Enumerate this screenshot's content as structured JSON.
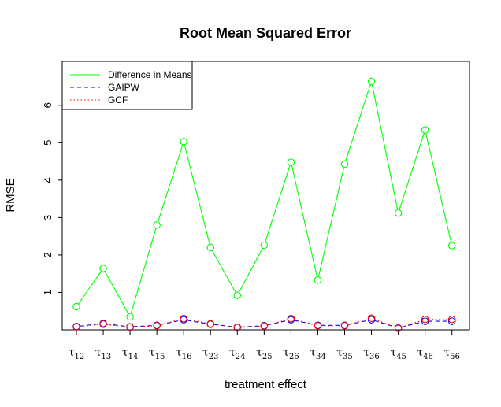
{
  "chart_data": {
    "type": "line",
    "title": "Root Mean Squared Error",
    "xlabel": "treatment effect",
    "ylabel": "RMSE",
    "categories": [
      {
        "base": "τ",
        "sub": "12"
      },
      {
        "base": "τ",
        "sub": "13"
      },
      {
        "base": "τ",
        "sub": "14"
      },
      {
        "base": "τ",
        "sub": "15"
      },
      {
        "base": "τ",
        "sub": "16"
      },
      {
        "base": "τ",
        "sub": "23"
      },
      {
        "base": "τ",
        "sub": "24"
      },
      {
        "base": "τ",
        "sub": "25"
      },
      {
        "base": "τ",
        "sub": "26"
      },
      {
        "base": "τ",
        "sub": "34"
      },
      {
        "base": "τ",
        "sub": "35"
      },
      {
        "base": "τ",
        "sub": "36"
      },
      {
        "base": "τ",
        "sub": "45"
      },
      {
        "base": "τ",
        "sub": "46"
      },
      {
        "base": "τ",
        "sub": "56"
      }
    ],
    "ylim": [
      0,
      6.9
    ],
    "yticks": [
      1,
      2,
      3,
      4,
      5,
      6
    ],
    "grid": false,
    "legend_position": "top-left",
    "series": [
      {
        "name": "Difference in Means",
        "color": "#00ff00",
        "linestyle": "solid",
        "values": [
          0.62,
          1.64,
          0.35,
          2.8,
          5.03,
          2.2,
          0.92,
          2.26,
          4.48,
          1.33,
          4.43,
          6.64,
          3.12,
          5.34,
          2.25
        ]
      },
      {
        "name": "GAIPW",
        "color": "#0000ff",
        "linestyle": "dashed",
        "values": [
          0.09,
          0.17,
          0.08,
          0.12,
          0.27,
          0.15,
          0.07,
          0.11,
          0.27,
          0.12,
          0.12,
          0.27,
          0.05,
          0.23,
          0.23
        ]
      },
      {
        "name": "GCF",
        "color": "#ff0000",
        "linestyle": "dotted",
        "values": [
          0.08,
          0.15,
          0.07,
          0.11,
          0.3,
          0.16,
          0.06,
          0.1,
          0.3,
          0.11,
          0.11,
          0.31,
          0.04,
          0.28,
          0.28
        ]
      }
    ]
  }
}
